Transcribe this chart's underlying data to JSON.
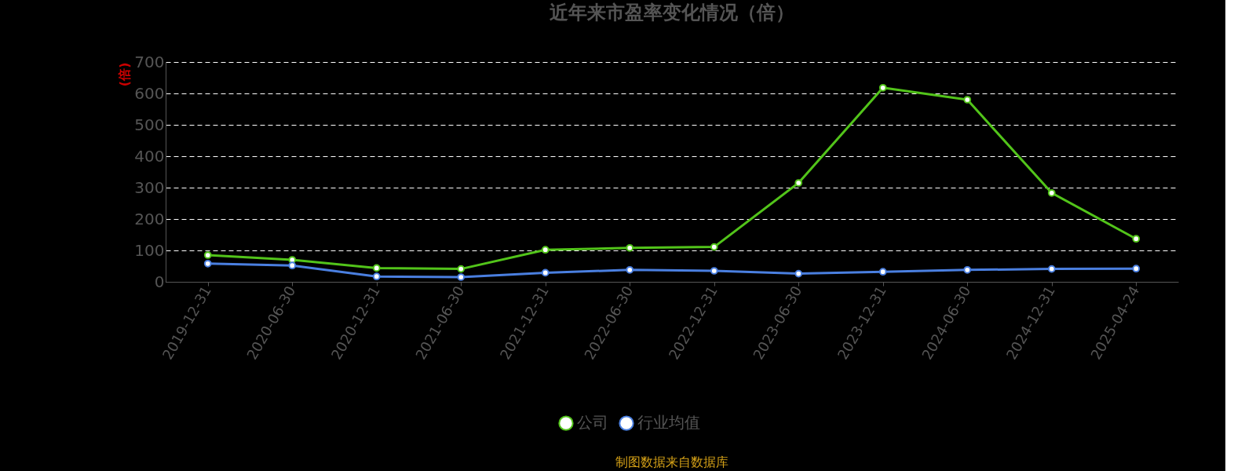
{
  "chart_data": {
    "type": "line",
    "title": "近年来市盈率变化情况（倍）",
    "ylabel": "(倍)",
    "categories": [
      "2019-12-31",
      "2020-06-30",
      "2020-12-31",
      "2021-06-30",
      "2021-12-31",
      "2022-06-30",
      "2022-12-31",
      "2023-06-30",
      "2023-12-31",
      "2024-06-30",
      "2024-12-31",
      "2025-04-24"
    ],
    "series": [
      {
        "name": "公司",
        "color": "#52c41a",
        "values": [
          85,
          70,
          44,
          41,
          102,
          108,
          111,
          315,
          618,
          580,
          283,
          137
        ]
      },
      {
        "name": "行业均值",
        "color": "#4a7fe0",
        "values": [
          58,
          52,
          17,
          15,
          29,
          38,
          35,
          26,
          32,
          38,
          41,
          42
        ]
      }
    ],
    "ylim": [
      0,
      700
    ],
    "yticks": [
      0,
      100,
      200,
      300,
      400,
      500,
      600,
      700
    ],
    "grid": "y",
    "legend": "bottom",
    "marker": "circle",
    "line_style": "solid",
    "annotations": [
      "制图数据来自数据库"
    ]
  }
}
